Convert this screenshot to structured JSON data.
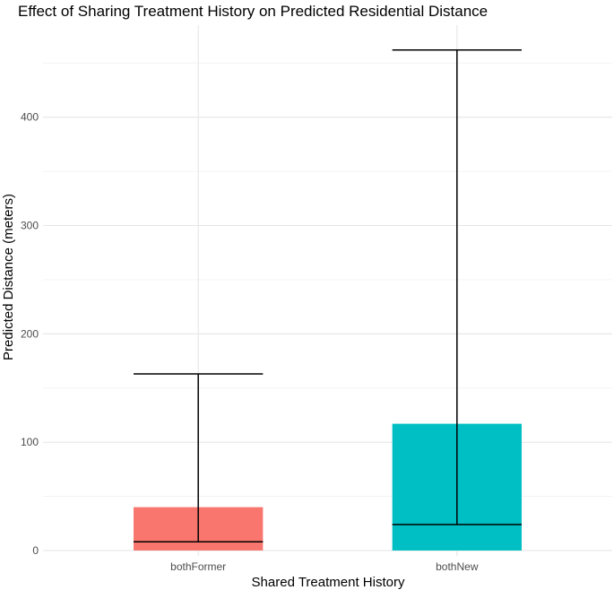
{
  "chart_data": {
    "type": "bar",
    "title": "Effect of Sharing Treatment History on Predicted Residential Distance",
    "xlabel": "Shared Treatment History",
    "ylabel": "Predicted Distance (meters)",
    "categories": [
      "bothFormer",
      "bothNew"
    ],
    "values": [
      40,
      117
    ],
    "error_lower": [
      8,
      24
    ],
    "error_upper": [
      163,
      462
    ],
    "bar_colors": [
      "#F8766D",
      "#00BFC4"
    ],
    "ylim": [
      -5,
      485
    ],
    "yticks": [
      0,
      100,
      200,
      300,
      400
    ],
    "yticklabels": [
      "0",
      "100",
      "200",
      "300",
      "400"
    ],
    "grid": true,
    "legend": "none"
  }
}
